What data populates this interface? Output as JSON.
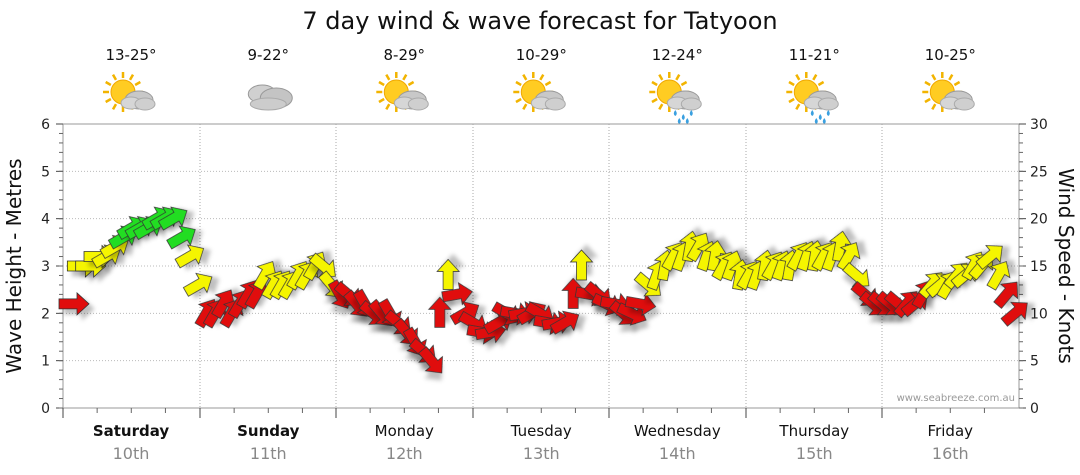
{
  "chart_data": {
    "type": "line",
    "title": "7 day wind & wave forecast for Tatyoon",
    "ylabel_left": "Wave Height - Metres",
    "ylabel_right": "Wind Speed - Knots",
    "ylim_left": [
      0,
      6
    ],
    "ylim_right": [
      0,
      30
    ],
    "left_ticks": [
      "0",
      "1",
      "2",
      "3",
      "4",
      "5",
      "6"
    ],
    "right_ticks": [
      "0",
      "5",
      "10",
      "15",
      "20",
      "25",
      "30"
    ],
    "credit": "www.seabreeze.com.au",
    "days": [
      {
        "day": "Saturday",
        "date": "10th",
        "temp": "13-25°",
        "icon": "sun-cloud-icon",
        "bold": true
      },
      {
        "day": "Sunday",
        "date": "11th",
        "temp": "9-22°",
        "icon": "cloud-icon",
        "bold": true
      },
      {
        "day": "Monday",
        "date": "12th",
        "temp": "8-29°",
        "icon": "sun-cloud-icon",
        "bold": false
      },
      {
        "day": "Tuesday",
        "date": "13th",
        "temp": "10-29°",
        "icon": "sun-cloud-icon",
        "bold": false
      },
      {
        "day": "Wednesday",
        "date": "14th",
        "temp": "12-24°",
        "icon": "sun-cloud-rain-icon",
        "bold": false
      },
      {
        "day": "Thursday",
        "date": "15th",
        "temp": "11-21°",
        "icon": "sun-cloud-rain-icon",
        "bold": false
      },
      {
        "day": "Friday",
        "date": "16th",
        "temp": "10-25°",
        "icon": "sun-cloud-icon",
        "bold": false
      }
    ],
    "wind_speed_knots": [
      11,
      15,
      15,
      16,
      16,
      17,
      18,
      19,
      19,
      19,
      20,
      20,
      20,
      18,
      16,
      13,
      10,
      10,
      11,
      10,
      11,
      12,
      12,
      14,
      13,
      13,
      13,
      14,
      14,
      15,
      15,
      13,
      12,
      12,
      11,
      11,
      10,
      10,
      10,
      9,
      8,
      7,
      6,
      5,
      10,
      14,
      12,
      10,
      9,
      8,
      8,
      9,
      10,
      10,
      10,
      10,
      10,
      9,
      9,
      9,
      12,
      15,
      12,
      12,
      11,
      11,
      10,
      10,
      11,
      13,
      14,
      15,
      16,
      16,
      17,
      17,
      16,
      16,
      15,
      15,
      14,
      14,
      14,
      15,
      15,
      15,
      15,
      16,
      16,
      16,
      16,
      16,
      17,
      16,
      14,
      12,
      11,
      11,
      11,
      11,
      11,
      11,
      12,
      13,
      13,
      13,
      14,
      14,
      15,
      15,
      16,
      14,
      12,
      10
    ],
    "wind_color_legend": {
      "light": "#e01010",
      "moderate": "#f5f500",
      "strong": "#22dd22"
    },
    "wind_color_thresholds_knots": [
      13,
      18
    ]
  }
}
